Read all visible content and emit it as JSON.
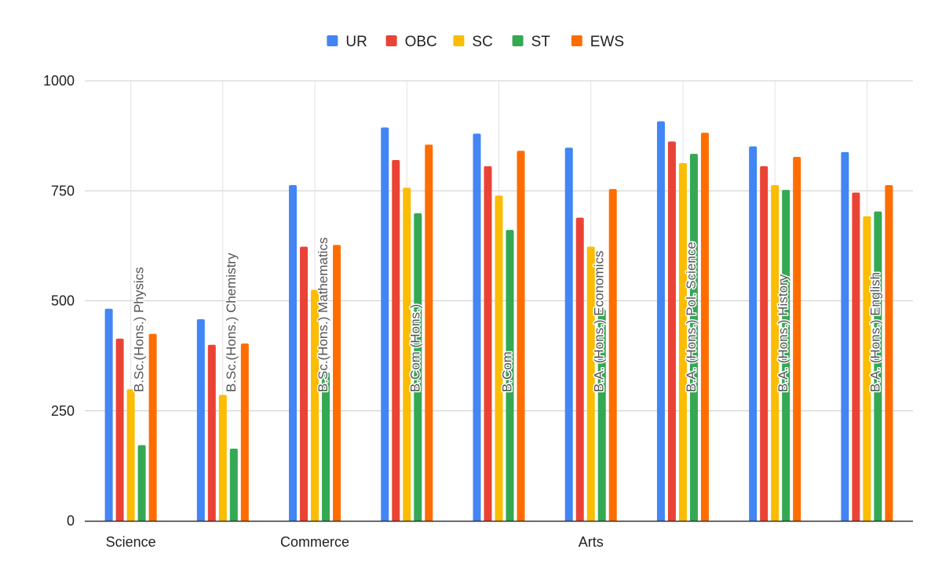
{
  "chart_data": {
    "type": "bar",
    "title": "",
    "xlabel": "",
    "ylabel": "",
    "ylim": [
      0,
      1000
    ],
    "yticks": [
      0,
      250,
      500,
      750,
      1000
    ],
    "grid": true,
    "legend_position": "top",
    "categories": [
      "B.Sc.(Hons.) Physics",
      "B.Sc.(Hons.) Chemistry",
      "B.Sc.(Hons.) Mathematics",
      "B.Com (Hons.)",
      "B.Com",
      "B.A. (Hons.) Economics",
      "B.A. (Hons.) Pol. Science",
      "B.A. (Hons.) History",
      "B.A. (Hons.) English"
    ],
    "groups": [
      {
        "label": "Science",
        "categories": [
          0,
          1
        ]
      },
      {
        "label": "Commerce",
        "categories": [
          2,
          3,
          4
        ]
      },
      {
        "label": "Arts",
        "categories": [
          5,
          6,
          7,
          8
        ]
      }
    ],
    "series": [
      {
        "name": "UR",
        "color": "#4285F4",
        "values": [
          482,
          458,
          763,
          894,
          880,
          848,
          908,
          851,
          838
        ]
      },
      {
        "name": "OBC",
        "color": "#EA4335",
        "values": [
          414,
          400,
          623,
          820,
          806,
          689,
          862,
          806,
          746
        ]
      },
      {
        "name": "SC",
        "color": "#FBBC04",
        "values": [
          299,
          286,
          525,
          757,
          739,
          623,
          813,
          763,
          692
        ]
      },
      {
        "name": "ST",
        "color": "#34A853",
        "values": [
          172,
          164,
          337,
          699,
          661,
          480,
          834,
          752,
          703
        ]
      },
      {
        "name": "EWS",
        "color": "#FF6D01",
        "values": [
          425,
          403,
          627,
          855,
          841,
          754,
          882,
          827,
          763
        ]
      }
    ]
  }
}
